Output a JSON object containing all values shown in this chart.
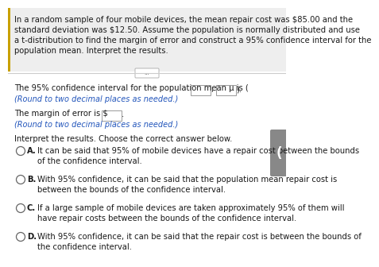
{
  "bg_color": "#ffffff",
  "header_bg": "#eeeeee",
  "header_text_line1": "In a random sample of four mobile devices, the mean repair cost was $85.00 and the",
  "header_text_line2": "standard deviation was $12.50. Assume the population is normally distributed and use",
  "header_text_line3": "a t-distribution to find the margin of error and construct a 95% confidence interval for the",
  "header_text_line4": "population mean. Interpret the results.",
  "accent_color": "#c8a000",
  "divider_color": "#cccccc",
  "dots_text": "...",
  "q1_prefix": "The 95% confidence interval for the population mean μ is (",
  "q1_suffix": ",",
  "q1_end": ").",
  "q1_note": "(Round to two decimal places as needed.)",
  "q2_prefix": "The margin of error is $",
  "q2_suffix": ".",
  "q2_note": "(Round to two decimal places as needed.)",
  "interpret_label": "Interpret the results. Choose the correct answer below.",
  "opt_A_letter": "A.",
  "opt_A_text1": "It can be said that 95% of mobile devices have a repair cost between the bounds",
  "opt_A_text2": "of the confidence interval.",
  "opt_B_letter": "B.",
  "opt_B_text1": "With 95% confidence, it can be said that the population mean repair cost is",
  "opt_B_text2": "between the bounds of the confidence interval.",
  "opt_C_letter": "C.",
  "opt_C_text1": "If a large sample of mobile devices are taken approximately 95% of them will",
  "opt_C_text2": "have repair costs between the bounds of the confidence interval.",
  "opt_D_letter": "D.",
  "opt_D_text1": "With 95% confidence, it can be said that the repair cost is between the bounds of",
  "opt_D_text2": "the confidence interval.",
  "text_color": "#1a1a1a",
  "note_color": "#2255bb",
  "letter_color": "#1a1a1a",
  "sidebar_color": "#888888",
  "sidebar_arrow": "(",
  "fs_header": 7.2,
  "fs_body": 7.2,
  "fs_note": 7.0,
  "fs_option": 7.2
}
